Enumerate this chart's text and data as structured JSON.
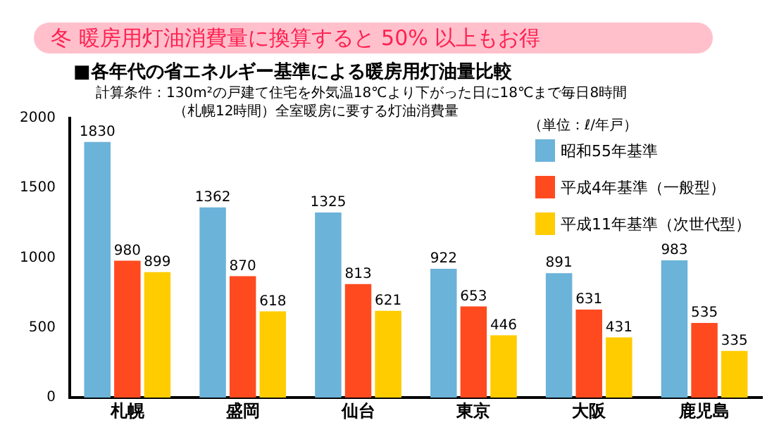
{
  "chart_data": {
    "type": "bar",
    "title": "冬 暖房用灯油消費量に換算すると 50% 以上もお得",
    "subtitle": "■各年代の省エネルギー基準による暖房用灯油量比較",
    "annotations": [
      "計算条件：130m²の戸建て住宅を外気温18℃より下がった日に18℃まで毎日8時間",
      "（札幌12時間）全室暖房に要する灯油消費量",
      "（単位：ℓ/年戸）"
    ],
    "categories": [
      "札幌",
      "盛岡",
      "仙台",
      "東京",
      "大阪",
      "鹿児島"
    ],
    "series": [
      {
        "name": "昭和55年基準",
        "color": "#6bb3d9",
        "values": [
          1830,
          1362,
          1325,
          922,
          891,
          983
        ]
      },
      {
        "name": "平成4年基準（一般型）",
        "color": "#ff4a1f",
        "values": [
          980,
          870,
          813,
          653,
          631,
          535
        ]
      },
      {
        "name": "平成11年基準（次世代型）",
        "color": "#ffcc00",
        "values": [
          899,
          618,
          621,
          446,
          431,
          335
        ]
      }
    ],
    "ylim": [
      0,
      2000
    ],
    "yticks": [
      0,
      500,
      1000,
      1500,
      2000
    ],
    "grid": false,
    "legend": "top right",
    "data_labels": true
  }
}
